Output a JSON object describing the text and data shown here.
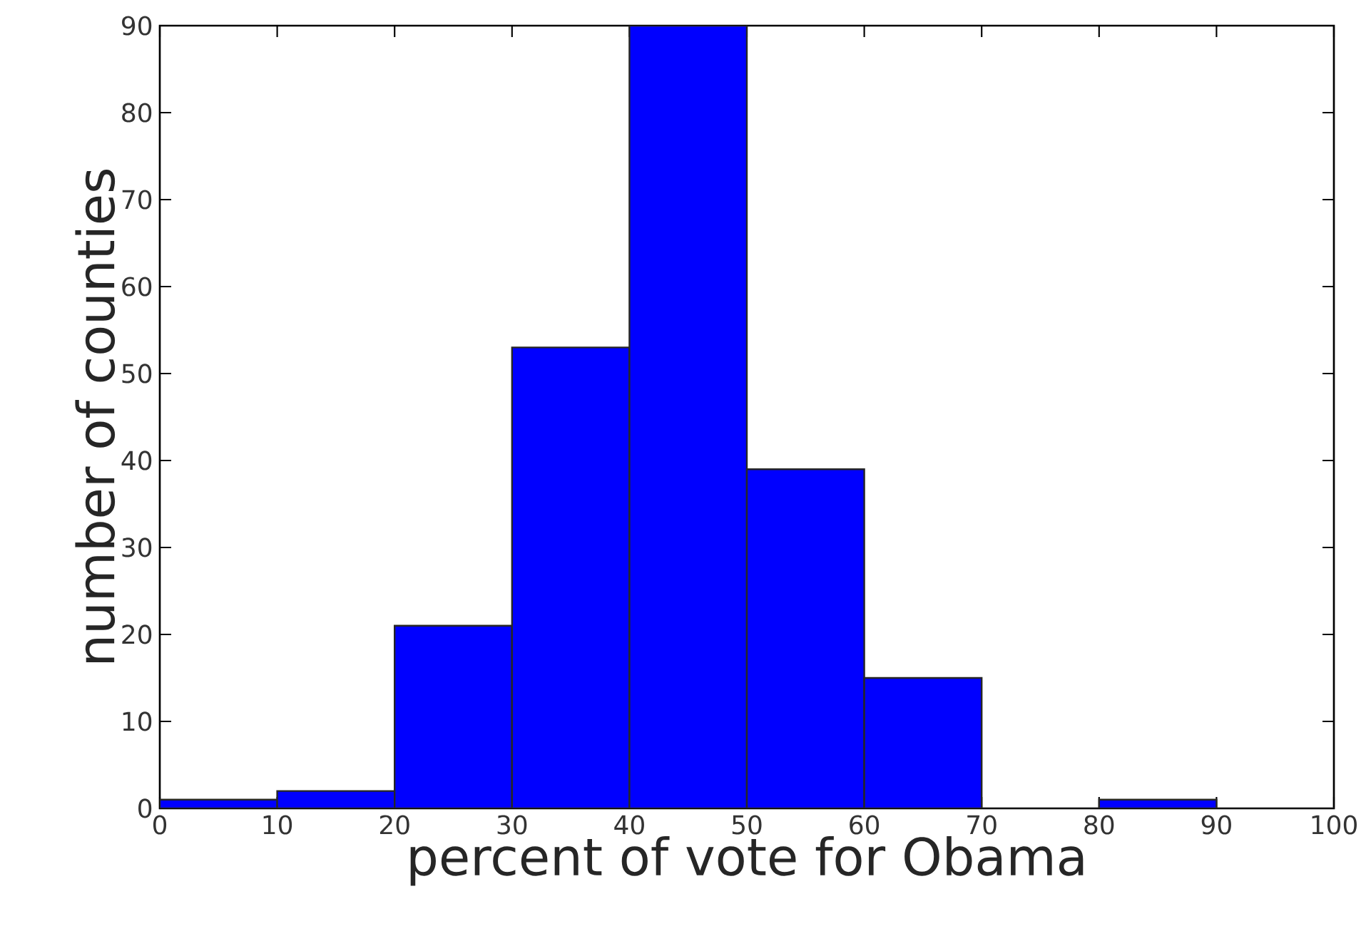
{
  "chart_data": {
    "type": "histogram",
    "xlabel": "percent of vote for Obama",
    "ylabel": "number of counties",
    "bins": [
      0,
      10,
      20,
      30,
      40,
      50,
      60,
      70,
      80,
      90,
      100
    ],
    "values": [
      1,
      2,
      21,
      53,
      90,
      39,
      15,
      0,
      1,
      0
    ],
    "color": "#0000ff",
    "xlim": [
      0,
      100
    ],
    "ylim": [
      0,
      90
    ],
    "xticks": [
      0,
      10,
      20,
      30,
      40,
      50,
      60,
      70,
      80,
      90,
      100
    ],
    "yticks": [
      0,
      10,
      20,
      30,
      40,
      50,
      60,
      70,
      80,
      90
    ]
  }
}
